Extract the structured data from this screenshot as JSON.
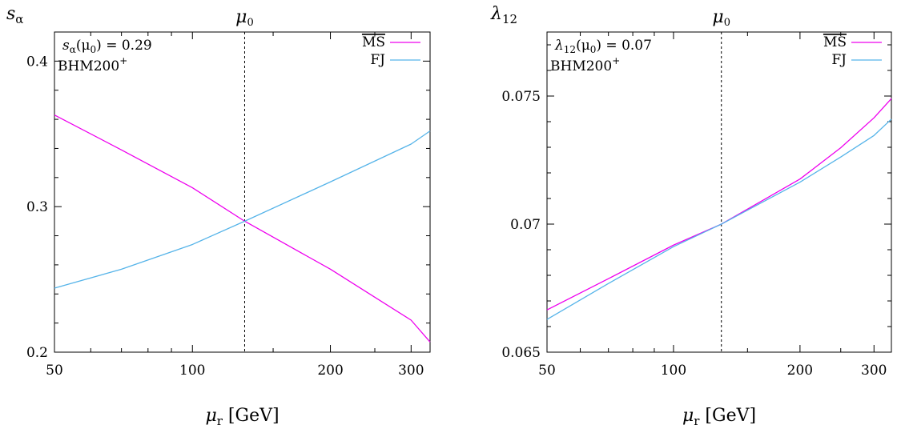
{
  "colors": {
    "ms": "#ee00ee",
    "fj": "#56b4e9",
    "axis": "#000000"
  },
  "chart_data": [
    {
      "type": "line",
      "ylabel": {
        "main": "s",
        "sub": "α"
      },
      "xlabel": {
        "main": "μ",
        "sub": "r",
        "unit": "[GeV]"
      },
      "ref_line": {
        "x": 130,
        "label_main": "μ",
        "label_sub": "0"
      },
      "annotation": {
        "line1_main": "s",
        "line1_sub": "α",
        "line1_paren": "(μ",
        "line1_paren_sub": "0",
        "line1_rest": ") = 0.29",
        "line2_main": "BHM200",
        "line2_sup": "+"
      },
      "x_scale": "log",
      "xlim": [
        50,
        330
      ],
      "ylim": [
        0.2,
        0.42
      ],
      "xticks": [
        50,
        100,
        200,
        300
      ],
      "xtick_labels": [
        "50",
        "100",
        "200",
        "300"
      ],
      "yticks": [
        0.2,
        0.3,
        0.4
      ],
      "ytick_labels": [
        "0.2",
        "0.3",
        "0.4"
      ],
      "legend_position": "top-right",
      "series": [
        {
          "name": "MS",
          "name_overline": true,
          "color_key": "ms",
          "x": [
            50,
            70,
            100,
            130,
            200,
            300,
            330
          ],
          "y": [
            0.363,
            0.339,
            0.313,
            0.29,
            0.257,
            0.222,
            0.207
          ]
        },
        {
          "name": "FJ",
          "color_key": "fj",
          "x": [
            50,
            70,
            100,
            130,
            200,
            300,
            330
          ],
          "y": [
            0.244,
            0.257,
            0.274,
            0.29,
            0.317,
            0.343,
            0.352
          ]
        }
      ]
    },
    {
      "type": "line",
      "ylabel": {
        "main": "λ",
        "sub": "12"
      },
      "xlabel": {
        "main": "μ",
        "sub": "r",
        "unit": "[GeV]"
      },
      "ref_line": {
        "x": 130,
        "label_main": "μ",
        "label_sub": "0"
      },
      "annotation": {
        "line1_main": "λ",
        "line1_sub": "12",
        "line1_paren": "(μ",
        "line1_paren_sub": "0",
        "line1_rest": ") = 0.07",
        "line2_main": "BHM200",
        "line2_sup": "+"
      },
      "x_scale": "log",
      "xlim": [
        50,
        330
      ],
      "ylim": [
        0.065,
        0.0775
      ],
      "xticks": [
        50,
        100,
        200,
        300
      ],
      "xtick_labels": [
        "50",
        "100",
        "200",
        "300"
      ],
      "yticks": [
        0.065,
        0.07,
        0.075
      ],
      "ytick_labels": [
        "0.065",
        "0.07",
        "0.075"
      ],
      "legend_position": "top-right",
      "series": [
        {
          "name": "MS",
          "name_overline": true,
          "color_key": "ms",
          "x": [
            50,
            70,
            100,
            130,
            200,
            250,
            300,
            330
          ],
          "y": [
            0.06665,
            0.06787,
            0.06918,
            0.07,
            0.07176,
            0.07298,
            0.07415,
            0.0749
          ]
        },
        {
          "name": "FJ",
          "color_key": "fj",
          "x": [
            50,
            70,
            100,
            130,
            200,
            250,
            300,
            330
          ],
          "y": [
            0.06628,
            0.06768,
            0.06912,
            0.07,
            0.07164,
            0.07262,
            0.07346,
            0.0741
          ]
        }
      ]
    }
  ]
}
